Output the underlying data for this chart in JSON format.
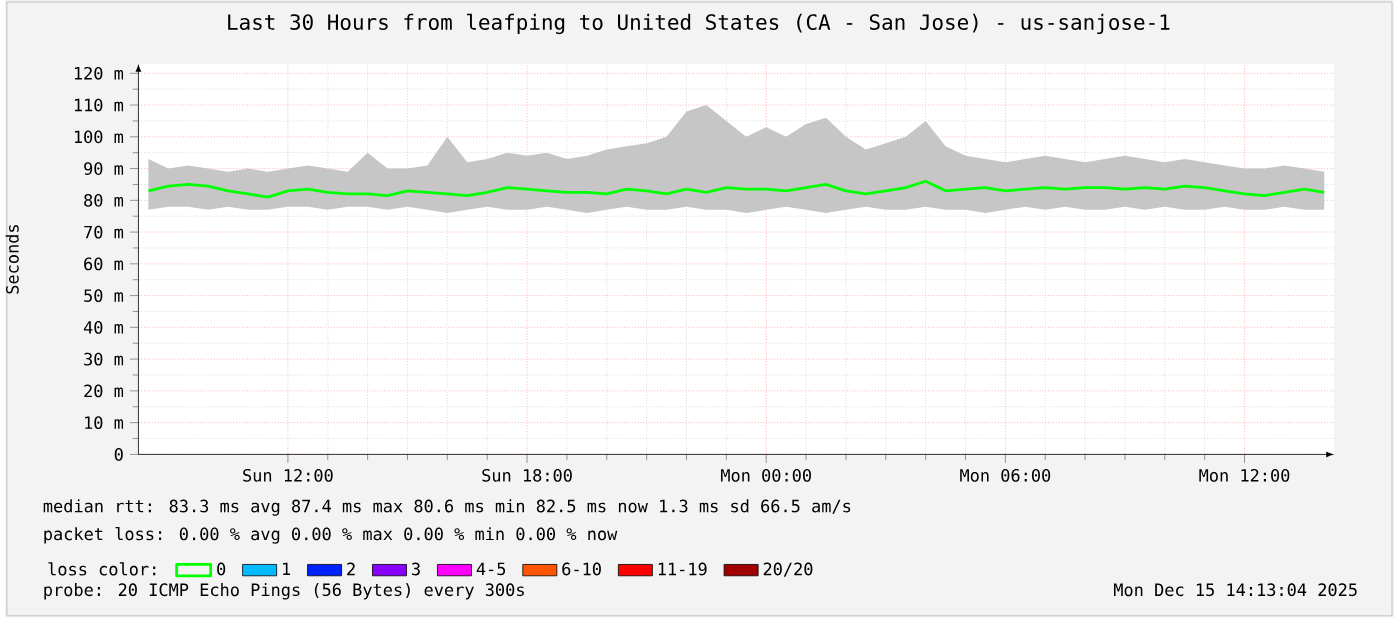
{
  "chart_data": {
    "type": "line",
    "title": "Last 30 Hours from leafping to United States (CA - San Jose) - us-sanjose-1",
    "ylabel": "Seconds",
    "legend_title": "loss color:",
    "legend": "bottom",
    "grid": true,
    "xlim": [
      "2025-12-14T08:15",
      "2025-12-15T14:15"
    ],
    "xticks": [
      {
        "value": "2025-12-14T12:00",
        "label": "Sun 12:00"
      },
      {
        "value": "2025-12-14T18:00",
        "label": "Sun 18:00"
      },
      {
        "value": "2025-12-15T00:00",
        "label": "Mon 00:00"
      },
      {
        "value": "2025-12-15T06:00",
        "label": "Mon 06:00"
      },
      {
        "value": "2025-12-15T12:00",
        "label": "Mon 12:00"
      }
    ],
    "ylim": [
      0,
      123
    ],
    "yticks": [
      0,
      {
        "value": 10,
        "label": "10 m"
      },
      {
        "value": 20,
        "label": "20 m"
      },
      {
        "value": 30,
        "label": "30 m"
      },
      {
        "value": 40,
        "label": "40 m"
      },
      {
        "value": 50,
        "label": "50 m"
      },
      {
        "value": 60,
        "label": "60 m"
      },
      {
        "value": 70,
        "label": "70 m"
      },
      {
        "value": 80,
        "label": "80 m"
      },
      {
        "value": 90,
        "label": "90 m"
      },
      {
        "value": 100,
        "label": "100 m"
      },
      {
        "value": 110,
        "label": "110 m"
      },
      {
        "value": 120,
        "label": "120 m"
      }
    ],
    "x": [
      "2025-12-14T08:30",
      "2025-12-14T09:00",
      "2025-12-14T09:30",
      "2025-12-14T10:00",
      "2025-12-14T10:30",
      "2025-12-14T11:00",
      "2025-12-14T11:30",
      "2025-12-14T12:00",
      "2025-12-14T12:30",
      "2025-12-14T13:00",
      "2025-12-14T13:30",
      "2025-12-14T14:00",
      "2025-12-14T14:30",
      "2025-12-14T15:00",
      "2025-12-14T15:30",
      "2025-12-14T16:00",
      "2025-12-14T16:30",
      "2025-12-14T17:00",
      "2025-12-14T17:30",
      "2025-12-14T18:00",
      "2025-12-14T18:30",
      "2025-12-14T19:00",
      "2025-12-14T19:30",
      "2025-12-14T20:00",
      "2025-12-14T20:30",
      "2025-12-14T21:00",
      "2025-12-14T21:30",
      "2025-12-14T22:00",
      "2025-12-14T22:30",
      "2025-12-14T23:00",
      "2025-12-14T23:30",
      "2025-12-15T00:00",
      "2025-12-15T00:30",
      "2025-12-15T01:00",
      "2025-12-15T01:30",
      "2025-12-15T02:00",
      "2025-12-15T02:30",
      "2025-12-15T03:00",
      "2025-12-15T03:30",
      "2025-12-15T04:00",
      "2025-12-15T04:30",
      "2025-12-15T05:00",
      "2025-12-15T05:30",
      "2025-12-15T06:00",
      "2025-12-15T06:30",
      "2025-12-15T07:00",
      "2025-12-15T07:30",
      "2025-12-15T08:00",
      "2025-12-15T08:30",
      "2025-12-15T09:00",
      "2025-12-15T09:30",
      "2025-12-15T10:00",
      "2025-12-15T10:30",
      "2025-12-15T11:00",
      "2025-12-15T11:30",
      "2025-12-15T12:00",
      "2025-12-15T12:30",
      "2025-12-15T13:00",
      "2025-12-15T13:30",
      "2025-12-15T14:00"
    ],
    "series": [
      {
        "name": "0",
        "color": "#00ff00",
        "values": [
          83,
          84.5,
          85,
          84.5,
          83,
          82,
          81,
          83,
          83.5,
          82.5,
          82,
          82,
          81.5,
          83,
          82.5,
          82,
          81.5,
          82.5,
          84,
          83.5,
          83,
          82.5,
          82.5,
          82,
          83.5,
          83,
          82,
          83.5,
          82.5,
          84,
          83.5,
          83.5,
          83,
          84,
          85,
          83,
          82,
          83,
          84,
          86,
          83,
          83.5,
          84,
          83,
          83.5,
          84,
          83.5,
          84,
          84,
          83.5,
          84,
          83.5,
          84.5,
          84,
          83,
          82,
          81.5,
          82.5,
          83.5,
          82.5
        ],
        "lower": [
          77,
          78,
          78,
          77,
          78,
          77,
          77,
          78,
          78,
          77,
          78,
          78,
          77,
          78,
          77,
          76,
          77,
          78,
          77,
          77,
          78,
          77,
          76,
          77,
          78,
          77,
          77,
          78,
          77,
          77,
          76,
          77,
          78,
          77,
          76,
          77,
          78,
          77,
          77,
          78,
          77,
          77,
          76,
          77,
          78,
          77,
          78,
          77,
          77,
          78,
          77,
          78,
          77,
          77,
          78,
          77,
          77,
          78,
          77,
          77
        ],
        "upper": [
          93,
          90,
          91,
          90,
          89,
          90,
          89,
          90,
          91,
          90,
          89,
          95,
          90,
          90,
          91,
          100,
          92,
          93,
          95,
          94,
          95,
          93,
          94,
          96,
          97,
          98,
          100,
          108,
          110,
          105,
          100,
          103,
          100,
          104,
          106,
          100,
          96,
          98,
          100,
          105,
          97,
          94,
          93,
          92,
          93,
          94,
          93,
          92,
          93,
          94,
          93,
          92,
          93,
          92,
          91,
          90,
          90,
          91,
          90,
          89
        ]
      },
      {
        "name": "1",
        "color": "#00bbff",
        "values": [
          null,
          null,
          null,
          null,
          null,
          null,
          null,
          null,
          null,
          null,
          null,
          null,
          null,
          null,
          null,
          null,
          null,
          null,
          null,
          null,
          null,
          null,
          null,
          null,
          null,
          null,
          null,
          null,
          null,
          null,
          null,
          null,
          null,
          null,
          null,
          null,
          null,
          null,
          null,
          null,
          null,
          null,
          null,
          null,
          null,
          null,
          null,
          null,
          null,
          null,
          null,
          null,
          null,
          null,
          null,
          null,
          null,
          null,
          null,
          null
        ]
      },
      {
        "name": "2",
        "color": "#0022ff",
        "values": [
          null,
          null,
          null,
          null,
          null,
          null,
          null,
          null,
          null,
          null,
          null,
          null,
          null,
          null,
          null,
          null,
          null,
          null,
          null,
          null,
          null,
          null,
          null,
          null,
          null,
          null,
          null,
          null,
          null,
          null,
          null,
          null,
          null,
          null,
          null,
          null,
          null,
          null,
          null,
          null,
          null,
          null,
          null,
          null,
          null,
          null,
          null,
          null,
          null,
          null,
          null,
          null,
          null,
          null,
          null,
          null,
          null,
          null,
          null,
          null
        ]
      },
      {
        "name": "3",
        "color": "#8a00ff",
        "values": [
          null,
          null,
          null,
          null,
          null,
          null,
          null,
          null,
          null,
          null,
          null,
          null,
          null,
          null,
          null,
          null,
          null,
          null,
          null,
          null,
          null,
          null,
          null,
          null,
          null,
          null,
          null,
          null,
          null,
          null,
          null,
          null,
          null,
          null,
          null,
          null,
          null,
          null,
          null,
          null,
          null,
          null,
          null,
          null,
          null,
          null,
          null,
          null,
          null,
          null,
          null,
          null,
          null,
          null,
          null,
          null,
          null,
          null,
          null,
          null
        ]
      },
      {
        "name": "4-5",
        "color": "#ff00ff",
        "values": [
          null,
          null,
          null,
          null,
          null,
          null,
          null,
          null,
          null,
          null,
          null,
          null,
          null,
          null,
          null,
          null,
          null,
          null,
          null,
          null,
          null,
          null,
          null,
          null,
          null,
          null,
          null,
          null,
          null,
          null,
          null,
          null,
          null,
          null,
          null,
          null,
          null,
          null,
          null,
          null,
          null,
          null,
          null,
          null,
          null,
          null,
          null,
          null,
          null,
          null,
          null,
          null,
          null,
          null,
          null,
          null,
          null,
          null,
          null,
          null
        ]
      },
      {
        "name": "6-10",
        "color": "#ff5500",
        "values": [
          null,
          null,
          null,
          null,
          null,
          null,
          null,
          null,
          null,
          null,
          null,
          null,
          null,
          null,
          null,
          null,
          null,
          null,
          null,
          null,
          null,
          null,
          null,
          null,
          null,
          null,
          null,
          null,
          null,
          null,
          null,
          null,
          null,
          null,
          null,
          null,
          null,
          null,
          null,
          null,
          null,
          null,
          null,
          null,
          null,
          null,
          null,
          null,
          null,
          null,
          null,
          null,
          null,
          null,
          null,
          null,
          null,
          null,
          null,
          null
        ]
      },
      {
        "name": "11-19",
        "color": "#ff0000",
        "values": [
          null,
          null,
          null,
          null,
          null,
          null,
          null,
          null,
          null,
          null,
          null,
          null,
          null,
          null,
          null,
          null,
          null,
          null,
          null,
          null,
          null,
          null,
          null,
          null,
          null,
          null,
          null,
          null,
          null,
          null,
          null,
          null,
          null,
          null,
          null,
          null,
          null,
          null,
          null,
          null,
          null,
          null,
          null,
          null,
          null,
          null,
          null,
          null,
          null,
          null,
          null,
          null,
          null,
          null,
          null,
          null,
          null,
          null,
          null,
          null
        ]
      },
      {
        "name": "20/20",
        "color": "#a10000",
        "values": [
          null,
          null,
          null,
          null,
          null,
          null,
          null,
          null,
          null,
          null,
          null,
          null,
          null,
          null,
          null,
          null,
          null,
          null,
          null,
          null,
          null,
          null,
          null,
          null,
          null,
          null,
          null,
          null,
          null,
          null,
          null,
          null,
          null,
          null,
          null,
          null,
          null,
          null,
          null,
          null,
          null,
          null,
          null,
          null,
          null,
          null,
          null,
          null,
          null,
          null,
          null,
          null,
          null,
          null,
          null,
          null,
          null,
          null,
          null,
          null
        ]
      }
    ],
    "annotations": [
      "median rtt: 83.3 ms avg 87.4 ms max 80.6 ms min 82.5 ms now 1.3 ms sd 66.5 am/s",
      "packet loss: 0.00 % avg 0.00 % max 0.00 % min 0.00 % now",
      "probe: 20 ICMP Echo Pings (56 Bytes) every 300s",
      "Mon Dec 15 14:13:04 2025"
    ]
  }
}
